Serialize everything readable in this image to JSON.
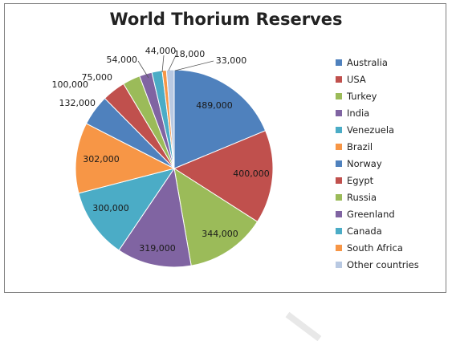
{
  "chart_data": {
    "type": "pie",
    "title": "World Thorium Reserves",
    "legend_position": "right",
    "slices": [
      {
        "label": "Australia",
        "value": 489000,
        "display": "489,000",
        "color": "#4f81bd"
      },
      {
        "label": "USA",
        "value": 400000,
        "display": "400,000",
        "color": "#c0504d"
      },
      {
        "label": "Turkey",
        "value": 344000,
        "display": "344,000",
        "color": "#9bbb59"
      },
      {
        "label": "India",
        "value": 319000,
        "display": "319,000",
        "color": "#8064a2"
      },
      {
        "label": "Venezuela",
        "value": 300000,
        "display": "300,000",
        "color": "#4bacc6"
      },
      {
        "label": "Brazil",
        "value": 302000,
        "display": "302,000",
        "color": "#f79646"
      },
      {
        "label": "Norway",
        "value": 132000,
        "display": "132,000",
        "color": "#4f81bd"
      },
      {
        "label": "Egypt",
        "value": 100000,
        "display": "100,000",
        "color": "#c0504d"
      },
      {
        "label": "Russia",
        "value": 75000,
        "display": "75,000",
        "color": "#9bbb59"
      },
      {
        "label": "Greenland",
        "value": 54000,
        "display": "54,000",
        "color": "#8064a2"
      },
      {
        "label": "Canada",
        "value": 44000,
        "display": "44,000",
        "color": "#4bacc6"
      },
      {
        "label": "South Africa",
        "value": 18000,
        "display": "18,000",
        "color": "#f79646"
      },
      {
        "label": "Other countries",
        "value": 33000,
        "display": "33,000",
        "color": "#b9c9e2"
      }
    ]
  }
}
